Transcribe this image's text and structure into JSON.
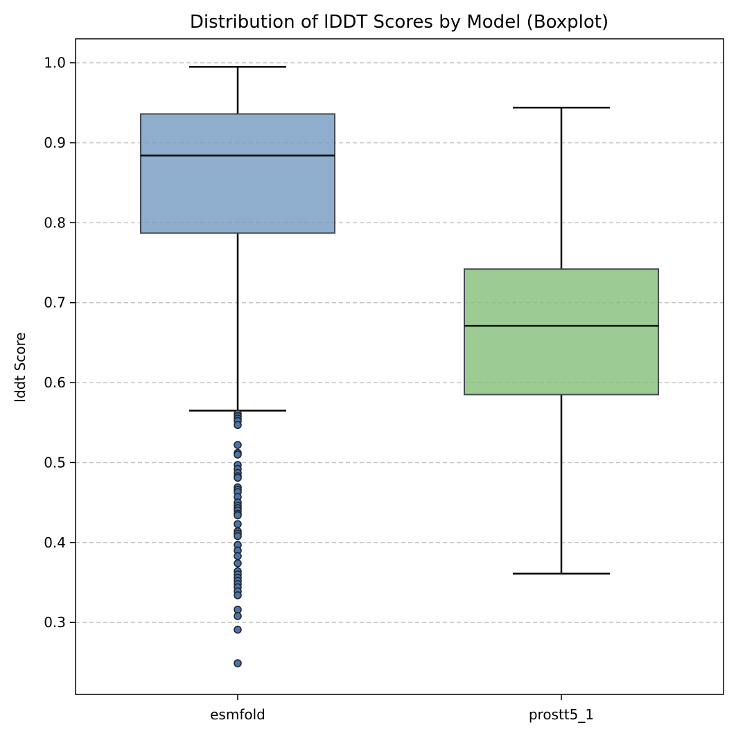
{
  "chart_data": {
    "type": "boxplot",
    "title": "Distribution of lDDT Scores by Model (Boxplot)",
    "xlabel": "",
    "ylabel": "lddt Score",
    "ylim": [
      0.21,
      1.03
    ],
    "yticks": [
      0.3,
      0.4,
      0.5,
      0.6,
      0.7,
      0.8,
      0.9,
      1.0
    ],
    "ytick_labels": [
      "0.3",
      "0.4",
      "0.5",
      "0.6",
      "0.7",
      "0.8",
      "0.9",
      "1.0"
    ],
    "grid": "y-dashed",
    "categories": [
      "esmfold",
      "prostt5_1"
    ],
    "boxes": [
      {
        "category": "esmfold",
        "color": "#7097c0",
        "whisker_low": 0.565,
        "q1": 0.787,
        "median": 0.884,
        "q3": 0.936,
        "whisker_high": 0.995,
        "outliers": [
          0.561,
          0.558,
          0.555,
          0.552,
          0.547,
          0.522,
          0.512,
          0.51,
          0.497,
          0.492,
          0.487,
          0.483,
          0.481,
          0.469,
          0.466,
          0.463,
          0.457,
          0.45,
          0.446,
          0.443,
          0.44,
          0.436,
          0.434,
          0.423,
          0.414,
          0.411,
          0.408,
          0.397,
          0.39,
          0.383,
          0.374,
          0.364,
          0.36,
          0.356,
          0.352,
          0.348,
          0.344,
          0.339,
          0.334,
          0.316,
          0.308,
          0.291,
          0.249
        ]
      },
      {
        "category": "prostt5_1",
        "color": "#80bc74",
        "whisker_low": 0.361,
        "q1": 0.585,
        "median": 0.671,
        "q3": 0.742,
        "whisker_high": 0.944,
        "outliers": []
      }
    ]
  }
}
